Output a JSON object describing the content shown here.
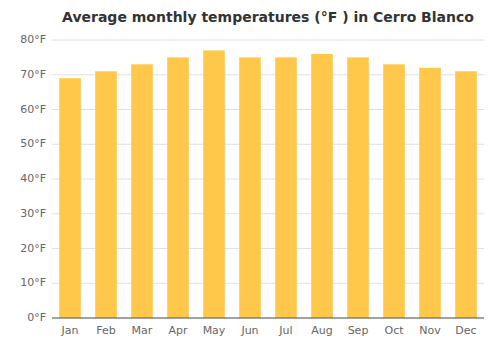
{
  "chart_data": {
    "type": "bar",
    "title": "Average monthly temperatures (°F ) in Cerro Blanco",
    "categories": [
      "Jan",
      "Feb",
      "Mar",
      "Apr",
      "May",
      "Jun",
      "Jul",
      "Aug",
      "Sep",
      "Oct",
      "Nov",
      "Dec"
    ],
    "values": [
      69,
      71,
      73,
      75,
      77,
      75,
      75,
      76,
      75,
      73,
      72,
      71
    ],
    "color": "#FFC84A",
    "ylim": [
      0,
      80
    ],
    "yticks": [
      {
        "value": 0,
        "label": "0°F"
      },
      {
        "value": 10,
        "label": "10°F"
      },
      {
        "value": 20,
        "label": "20°F"
      },
      {
        "value": 30,
        "label": "30°F"
      },
      {
        "value": 40,
        "label": "40°F"
      },
      {
        "value": 50,
        "label": "50°F"
      },
      {
        "value": 60,
        "label": "60°F"
      },
      {
        "value": 70,
        "label": "70°F"
      },
      {
        "value": 80,
        "label": "80°F"
      }
    ],
    "grid": true
  }
}
